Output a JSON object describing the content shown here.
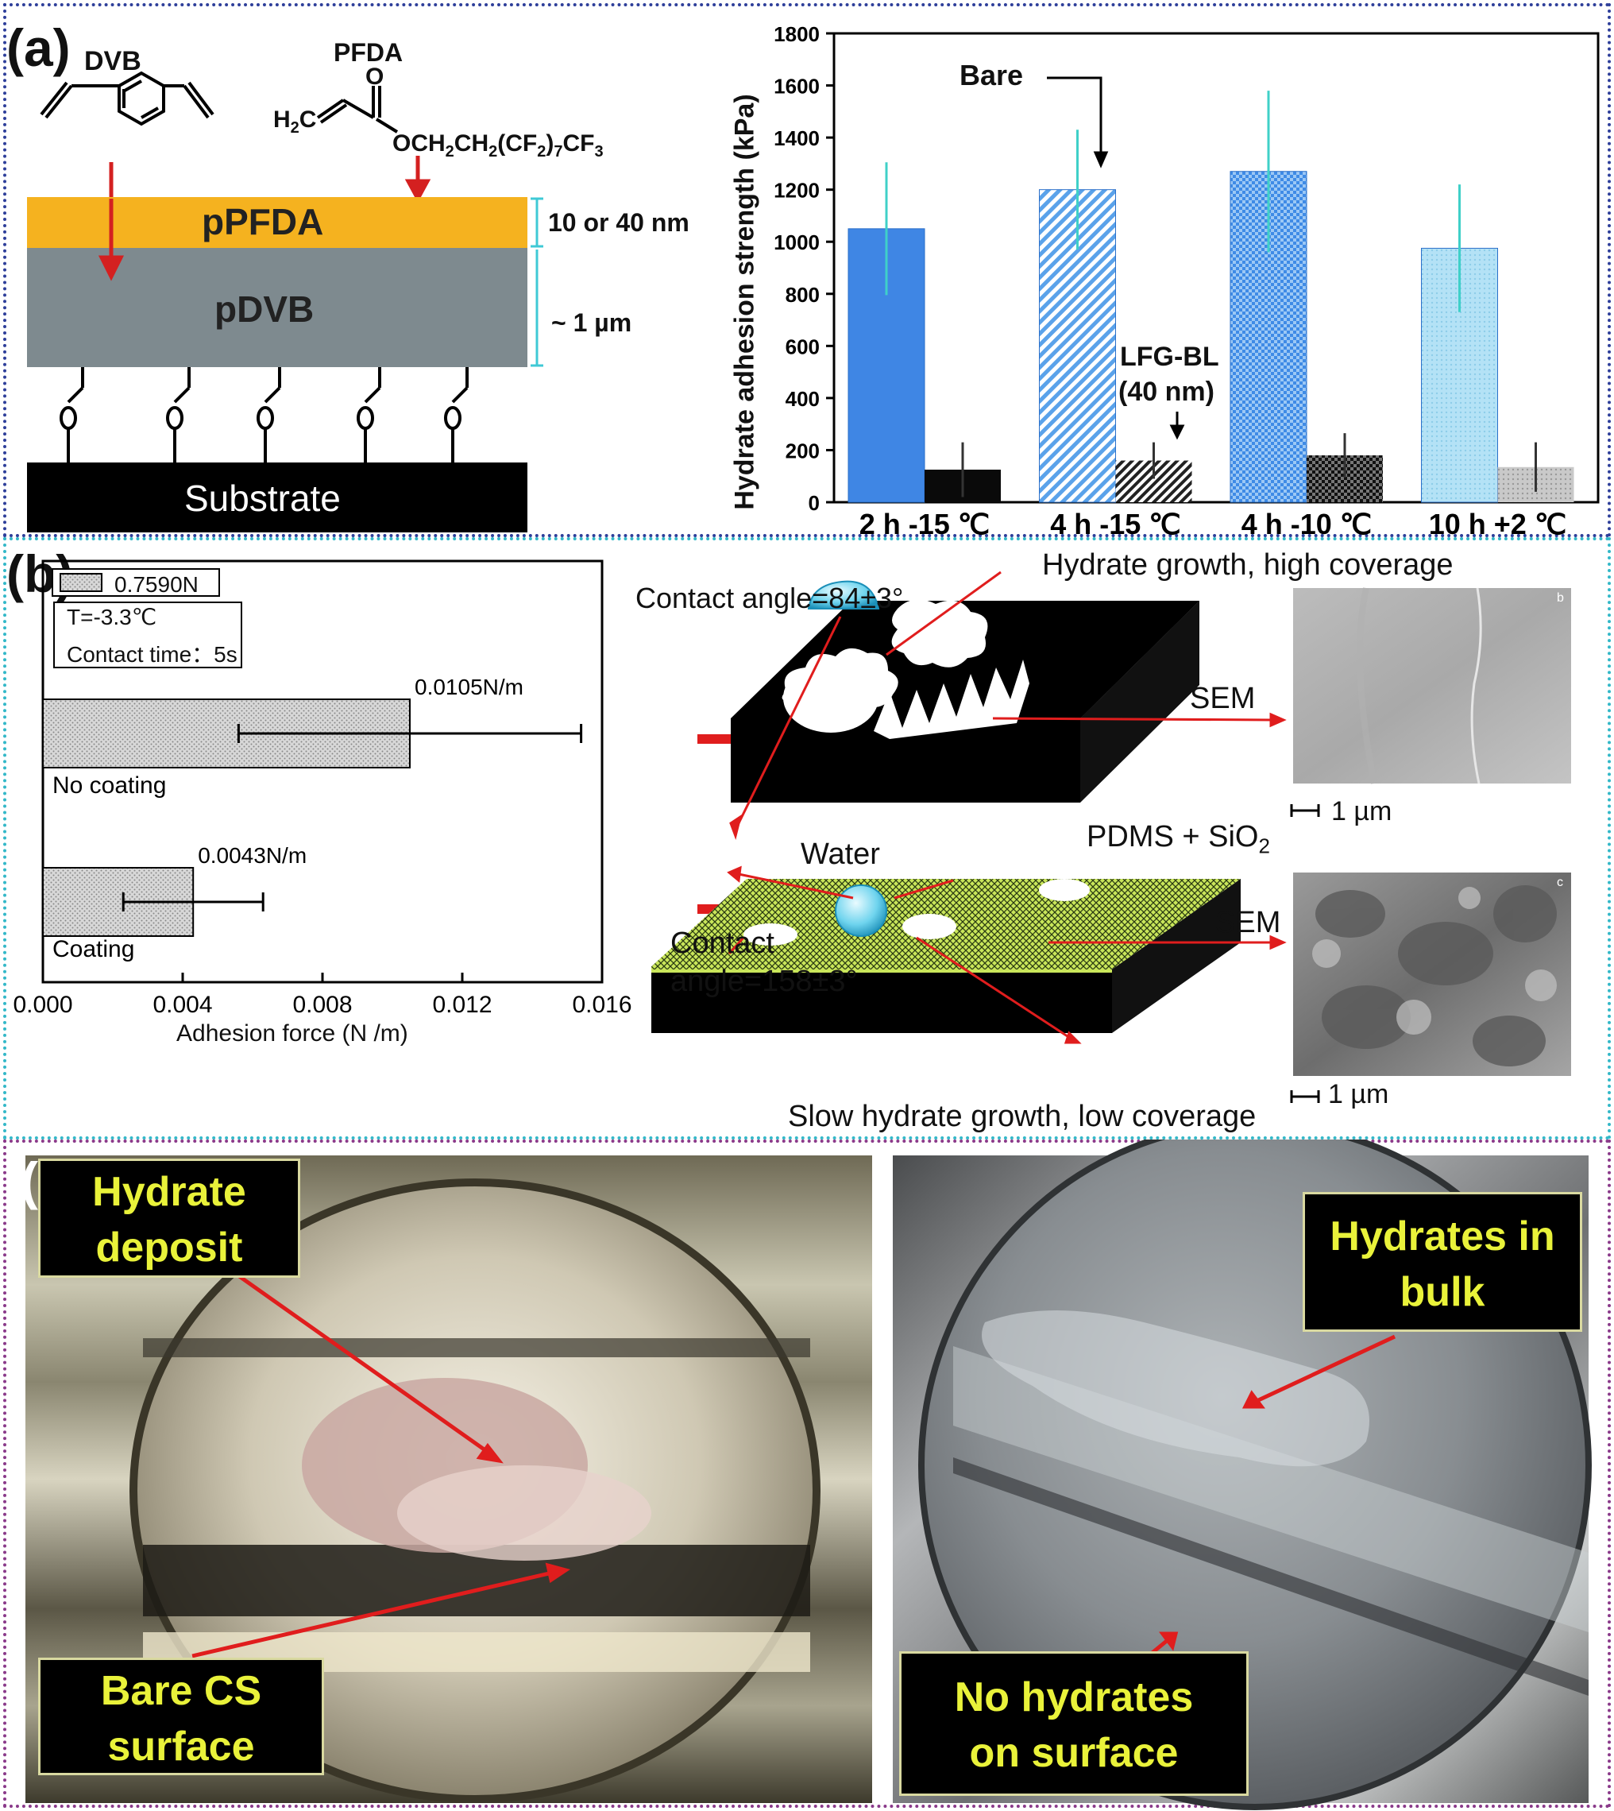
{
  "panel_a": {
    "label": "(a)",
    "dvb_label": "DVB",
    "pfda_label": "PFDA",
    "pfda_left": "H",
    "pfda_c": "C",
    "pfda_o": "O",
    "pfda_chain": "OCH",
    "pfda_chain_mid": "CH",
    "pfda_chain_cf": "(CF",
    "pfda_chain_end": ")",
    "pfda_cf3": "CF",
    "sub_2": "2",
    "sub_7": "7",
    "sub_3": "3",
    "layer_top": "pPFDA",
    "layer_mid": "pDVB",
    "substrate": "Substrate",
    "thickness_top": "10 or 40 nm",
    "thickness_mid": "~ 1 µm",
    "colors": {
      "ppfda": "#f5b21f",
      "pdvb": "#7e8a8f",
      "substrate": "#000000",
      "arrow": "#d42020",
      "dim": "#3fc9d6"
    }
  },
  "chart_a": {
    "ylabel": "Hydrate adhesion strength (kPa)",
    "annotation_bare": "Bare",
    "annotation_lfg_1": "LFG-BL",
    "annotation_lfg_2": "(40 nm)"
  },
  "chart_data": [
    {
      "type": "bar",
      "categories": [
        "2 h -15 ℃",
        "4 h -15 ℃",
        "4 h -10 ℃",
        "10 h +2 ℃"
      ],
      "series": [
        {
          "name": "Bare",
          "values": [
            1050,
            1200,
            1270,
            975
          ],
          "errors": [
            255,
            230,
            310,
            245
          ]
        },
        {
          "name": "LFG-BL (40 nm)",
          "values": [
            125,
            160,
            180,
            135
          ],
          "errors": [
            105,
            70,
            85,
            95
          ]
        }
      ],
      "ylabel": "Hydrate adhesion strength (kPa)",
      "ylim": [
        0,
        1800
      ],
      "yticks": [
        0,
        200,
        400,
        600,
        800,
        1000,
        1200,
        1400,
        1600,
        1800
      ]
    },
    {
      "type": "bar",
      "orientation": "horizontal",
      "categories": [
        "No coating",
        "Coating"
      ],
      "values": [
        0.0105,
        0.0043
      ],
      "errors": [
        0.0049,
        0.002
      ],
      "value_labels": [
        "0.0105N/m",
        "0.0043N/m"
      ],
      "xlabel": "Adhesion force (N /m)",
      "xlim": [
        0,
        0.016
      ],
      "xticks": [
        "0.000",
        "0.004",
        "0.008",
        "0.012",
        "0.016"
      ]
    }
  ],
  "panel_b": {
    "label": "(b)",
    "legend_value": "0.7590N",
    "condition_temp": "T=-3.3℃",
    "condition_time": "Contact time：5s",
    "contact_angle_top": "Contact angle=84±3°",
    "hydrate_high": "Hydrate growth, high coverage",
    "sem_top": "SEM",
    "scale_top": "1 µm",
    "water": "Water",
    "pdms": "PDMS + SiO",
    "pdms_sub": "2",
    "contact_angle_bottom_1": "Contact",
    "contact_angle_bottom_2": "angle=158±3°",
    "sem_bottom": "SEM",
    "scale_bottom": "1 µm",
    "hydrate_low": "Slow hydrate growth, low coverage",
    "sem_tag_top": "b",
    "sem_tag_bottom": "c"
  },
  "panel_c": {
    "label": "(c)",
    "box_deposit": [
      "Hydrate",
      "deposit"
    ],
    "box_bare": [
      "Bare CS",
      "surface"
    ],
    "box_bulk": [
      "Hydrates in",
      "bulk"
    ],
    "box_none": [
      "No hydrates",
      "on surface"
    ]
  }
}
